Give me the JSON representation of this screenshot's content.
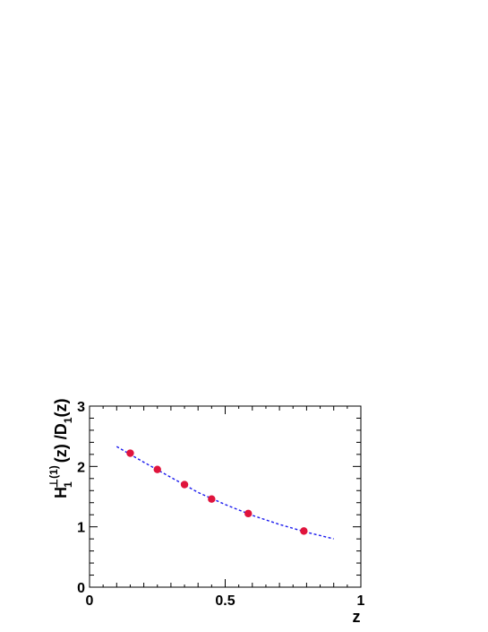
{
  "chart_data": {
    "type": "scatter",
    "title": "",
    "xlabel": "z",
    "ylabel": {
      "main": "H",
      "sub": "1",
      "sup": "⊥(1)",
      "rest": "(z) /D",
      "sub2": "1",
      "rest2": "(z)"
    },
    "xlim": [
      0,
      1
    ],
    "ylim": [
      0,
      3
    ],
    "x_ticks": [
      0,
      0.5,
      1
    ],
    "x_tick_labels": [
      "0",
      "0.5",
      "1"
    ],
    "y_ticks": [
      0,
      1,
      2,
      3
    ],
    "y_tick_labels": [
      "0",
      "1",
      "2",
      "3"
    ],
    "grid": false,
    "legend": "none",
    "series": [
      {
        "kind": "points",
        "color": "#e0143c",
        "x": [
          0.15,
          0.25,
          0.35,
          0.45,
          0.585,
          0.79
        ],
        "y": [
          2.22,
          1.95,
          1.7,
          1.46,
          1.22,
          0.93
        ]
      },
      {
        "kind": "dashed-curve",
        "color": "#1a1aee",
        "x": [
          0.1,
          0.2,
          0.3,
          0.4,
          0.5,
          0.6,
          0.7,
          0.8,
          0.9
        ],
        "y": [
          2.33,
          2.07,
          1.82,
          1.57,
          1.37,
          1.19,
          1.04,
          0.91,
          0.8
        ]
      }
    ]
  }
}
